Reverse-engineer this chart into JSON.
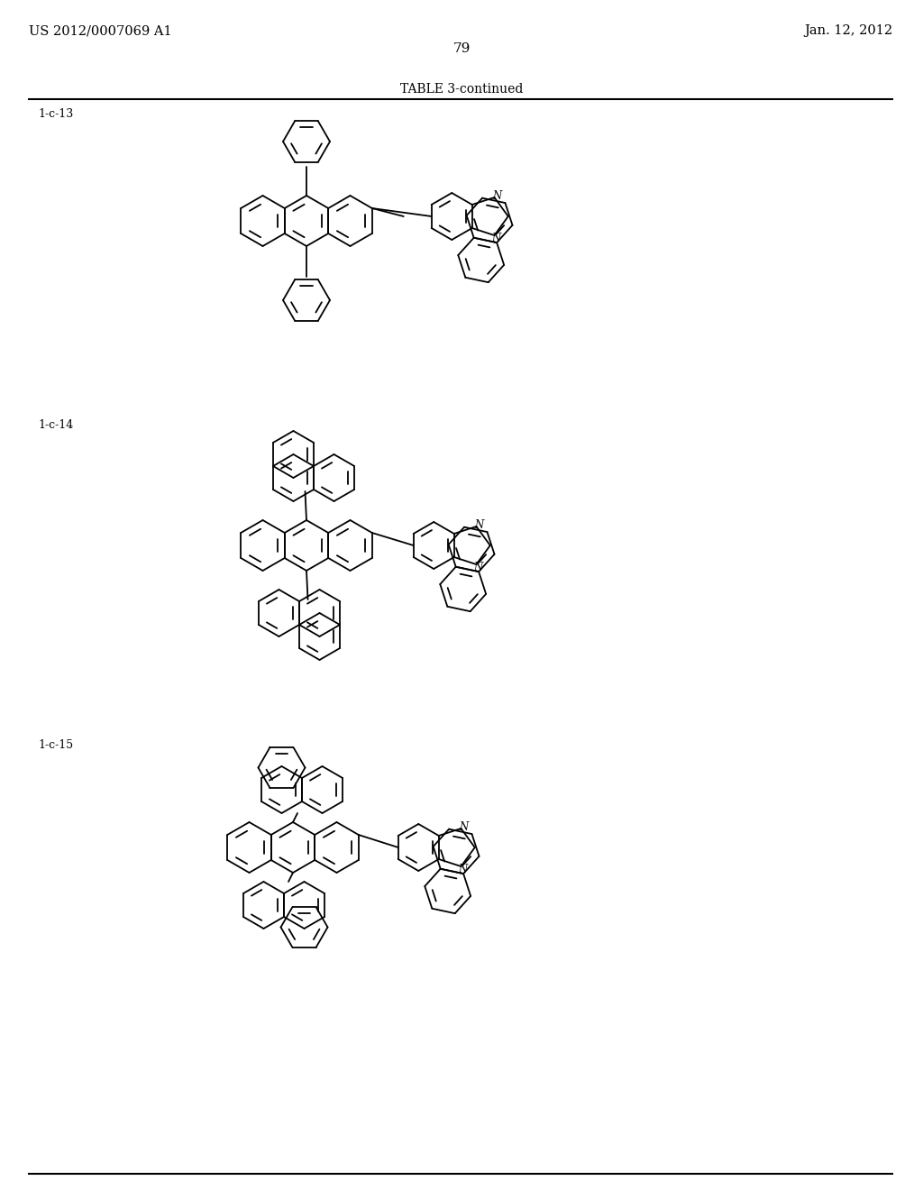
{
  "background": "#ffffff",
  "header_left": "US 2012/0007069 A1",
  "header_right": "Jan. 12, 2012",
  "page_num": "79",
  "table_title": "TABLE 3-continued",
  "label_13": "1-c-13",
  "label_14": "1-c-14",
  "label_15": "1-c-15",
  "lw": 1.3
}
